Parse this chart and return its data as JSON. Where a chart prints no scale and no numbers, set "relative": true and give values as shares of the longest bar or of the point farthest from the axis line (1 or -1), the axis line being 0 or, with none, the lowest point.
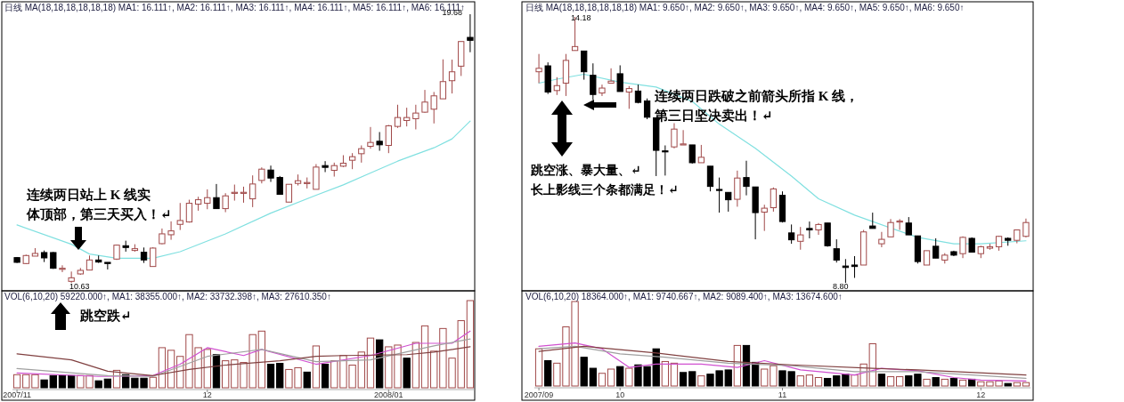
{
  "chart_data": [
    {
      "type": "candlestick",
      "categories": [
        null,
        null,
        null,
        null,
        null,
        null,
        null,
        null,
        null,
        null,
        null,
        null,
        null,
        null,
        null,
        null,
        null,
        null,
        null,
        null,
        null,
        null,
        null,
        null,
        null,
        null,
        null,
        null,
        null,
        null,
        null,
        null,
        null,
        null,
        null,
        null,
        null,
        null,
        null,
        null,
        null,
        null,
        null,
        null,
        null,
        null,
        null,
        null,
        null,
        null,
        null
      ],
      "ohlc": [
        [
          11.48,
          11.5,
          11.3,
          11.32
        ],
        [
          11.28,
          11.58,
          11.26,
          11.55
        ],
        [
          11.53,
          11.8,
          11.53,
          11.62
        ],
        [
          11.65,
          11.72,
          11.33,
          11.47
        ],
        [
          11.65,
          11.67,
          11.1,
          11.12
        ],
        [
          11.11,
          11.22,
          10.99,
          11.12
        ],
        [
          10.68,
          11.01,
          10.63,
          10.8
        ],
        [
          10.93,
          11.13,
          10.9,
          11.05
        ],
        [
          11.06,
          11.55,
          11.06,
          11.4
        ],
        [
          11.4,
          11.55,
          11.3,
          11.33
        ],
        [
          11.32,
          11.32,
          11.08,
          11.28
        ],
        [
          11.43,
          11.92,
          11.4,
          11.9
        ],
        [
          11.88,
          12.05,
          11.68,
          11.82
        ],
        [
          11.72,
          11.93,
          11.68,
          11.78
        ],
        [
          11.66,
          11.82,
          11.3,
          11.4
        ],
        [
          11.18,
          11.83,
          11.18,
          11.8
        ],
        [
          11.95,
          12.46,
          11.93,
          12.28
        ],
        [
          12.25,
          12.7,
          12.08,
          12.38
        ],
        [
          12.6,
          13.32,
          12.41,
          12.73
        ],
        [
          12.68,
          13.43,
          12.66,
          13.31
        ],
        [
          13.28,
          13.53,
          13.06,
          13.43
        ],
        [
          13.31,
          13.78,
          13.11,
          13.5
        ],
        [
          13.5,
          13.96,
          13.13,
          13.13
        ],
        [
          13.13,
          13.65,
          13.01,
          13.56
        ],
        [
          13.67,
          13.94,
          13.4,
          13.68
        ],
        [
          13.67,
          13.87,
          13.33,
          13.68
        ],
        [
          13.46,
          14.25,
          13.18,
          13.96
        ],
        [
          14.08,
          14.52,
          13.98,
          14.46
        ],
        [
          14.43,
          14.58,
          14.03,
          14.16
        ],
        [
          14.18,
          14.23,
          13.61,
          13.61
        ],
        [
          13.35,
          13.95,
          13.35,
          13.95
        ],
        [
          13.98,
          14.28,
          13.91,
          14.07
        ],
        [
          13.98,
          14.18,
          13.81,
          14.01
        ],
        [
          13.78,
          14.63,
          13.78,
          14.53
        ],
        [
          14.58,
          14.73,
          14.36,
          14.52
        ],
        [
          14.42,
          14.68,
          14.21,
          14.58
        ],
        [
          14.56,
          14.93,
          14.53,
          14.66
        ],
        [
          14.76,
          15.0,
          14.46,
          14.88
        ],
        [
          14.98,
          15.26,
          14.68,
          15.15
        ],
        [
          15.23,
          15.88,
          15.15,
          15.36
        ],
        [
          15.4,
          15.71,
          15.08,
          15.28
        ],
        [
          15.26,
          15.95,
          15.0,
          15.92
        ],
        [
          15.9,
          16.63,
          15.85,
          16.2
        ],
        [
          16.1,
          16.53,
          15.9,
          16.2
        ],
        [
          16.16,
          16.63,
          15.8,
          16.35
        ],
        [
          16.38,
          17.13,
          16.36,
          16.72
        ],
        [
          16.48,
          17.06,
          16.0,
          16.93
        ],
        [
          16.83,
          18.16,
          16.83,
          17.41
        ],
        [
          17.44,
          18.15,
          17.01,
          17.74
        ],
        [
          17.93,
          18.76,
          17.6,
          18.76
        ],
        [
          18.9,
          19.68,
          18.4,
          18.8
        ]
      ],
      "series": [
        {
          "type": "line",
          "color": "#80e0e0",
          "values": [
            12.58,
            null,
            null,
            null,
            null,
            null,
            11.93,
            null,
            11.6,
            null,
            null,
            11.46,
            null,
            null,
            null,
            11.46,
            null,
            null,
            11.68,
            null,
            null,
            null,
            null,
            12.28,
            null,
            null,
            null,
            null,
            12.98,
            null,
            null,
            null,
            null,
            13.58,
            null,
            null,
            13.93,
            null,
            null,
            14.33,
            null,
            null,
            14.73,
            null,
            null,
            null,
            15.18,
            null,
            15.48,
            null,
            16.08
          ]
        }
      ],
      "annotations": [
        "日线 MA(18,18,18,18,18,18) MA1: 16.111↑, MA2: 16.111↑, MA3: 16.111↑, MA4: 16.111↑, MA5: 16.111↑, MA6: 16.111↑",
        "连续两日站上 K 线实体顶部，第三天买入！↵",
        "19.68",
        "10.63"
      ]
    },
    {
      "type": "bar",
      "relative": true,
      "categories": [
        "2007/11",
        null,
        null,
        null,
        null,
        null,
        null,
        null,
        null,
        null,
        null,
        null,
        null,
        null,
        null,
        null,
        null,
        null,
        null,
        null,
        null,
        "12",
        null,
        null,
        null,
        null,
        null,
        null,
        null,
        null,
        null,
        null,
        null,
        null,
        null,
        null,
        null,
        null,
        null,
        null,
        null,
        "2008/01",
        null,
        null,
        null,
        null,
        null,
        null,
        null,
        null,
        null
      ],
      "series": [
        {
          "type": "bar",
          "values": [
            0.15,
            0.15,
            0.15,
            0.09,
            0.14,
            0.14,
            0.14,
            0.14,
            0.14,
            0.08,
            0.1,
            0.2,
            0.15,
            0.11,
            0.11,
            0.12,
            0.46,
            0.43,
            0.36,
            0.61,
            0.46,
            0.44,
            0.38,
            0.31,
            0.32,
            0.29,
            0.61,
            0.65,
            0.27,
            0.28,
            0.21,
            0.23,
            0.18,
            0.48,
            0.27,
            0.31,
            0.37,
            0.26,
            0.41,
            0.57,
            0.55,
            0.47,
            0.49,
            0.34,
            0.52,
            0.71,
            0.42,
            0.68,
            0.34,
            0.77,
            1
          ],
          "colors": [
            "#ffffff",
            "#ffffff",
            "#ffffff",
            "#000000",
            "#000000",
            "#000000",
            "#000000",
            "#ffffff",
            "#ffffff",
            "#000000",
            "#000000",
            "#ffffff",
            "#000000",
            "#000000",
            "#000000",
            "#ffffff",
            "#ffffff",
            "#ffffff",
            "#ffffff",
            "#ffffff",
            "#ffffff",
            "#ffffff",
            "#000000",
            "#ffffff",
            "#ffffff",
            "#ffffff",
            "#ffffff",
            "#ffffff",
            "#000000",
            "#000000",
            "#ffffff",
            "#ffffff",
            "#000000",
            "#ffffff",
            "#000000",
            "#ffffff",
            "#ffffff",
            "#ffffff",
            "#ffffff",
            "#ffffff",
            "#000000",
            "#ffffff",
            "#ffffff",
            "#000000",
            "#ffffff",
            "#ffffff",
            "#ffffff",
            "#ffffff",
            "#ffffff",
            "#ffffff",
            "#ffffff"
          ]
        },
        {
          "type": "line",
          "color": "#d050d0",
          "values": [
            0.17,
            null,
            null,
            null,
            null,
            null,
            null,
            null,
            null,
            0.13,
            null,
            null,
            null,
            null,
            null,
            0.14,
            null,
            null,
            0.27,
            null,
            null,
            0.46,
            null,
            null,
            null,
            0.37,
            null,
            0.44,
            null,
            null,
            null,
            null,
            null,
            0.27,
            null,
            null,
            null,
            null,
            null,
            0.37,
            null,
            null,
            null,
            null,
            0.51,
            null,
            null,
            null,
            0.51,
            null,
            0.65
          ]
        },
        {
          "type": "line",
          "color": "#a0a0a0",
          "values": [
            0.22,
            null,
            null,
            null,
            null,
            null,
            null,
            null,
            null,
            null,
            0.14,
            null,
            null,
            null,
            null,
            0.13,
            null,
            null,
            null,
            null,
            null,
            0.36,
            null,
            null,
            null,
            null,
            null,
            0.44,
            null,
            null,
            null,
            null,
            null,
            0.3,
            null,
            null,
            null,
            null,
            null,
            0.32,
            null,
            null,
            null,
            null,
            null,
            null,
            0.48,
            null,
            null,
            null,
            0.56
          ]
        },
        {
          "type": "line",
          "color": "#804040",
          "values": [
            0.39,
            null,
            null,
            null,
            null,
            null,
            0.32,
            null,
            null,
            null,
            0.19,
            null,
            null,
            null,
            null,
            0.14,
            null,
            null,
            null,
            0.21,
            null,
            null,
            null,
            0.26,
            null,
            null,
            null,
            null,
            null,
            0.31,
            null,
            null,
            null,
            0.36,
            null,
            null,
            0.37,
            null,
            null,
            null,
            null,
            null,
            null,
            0.38,
            null,
            null,
            0.41,
            null,
            null,
            null,
            0.47
          ]
        }
      ],
      "annotations": [
        "VOL(6,10,20) 59220.000↑, MA1: 38355.000↑, MA2: 33732.398↑, MA3: 27610.350↑",
        "跳空跌↵"
      ]
    },
    {
      "type": "candlestick",
      "categories": [
        null,
        null,
        null,
        null,
        null,
        null,
        null,
        null,
        null,
        null,
        null,
        null,
        null,
        null,
        null,
        null,
        null,
        null,
        null,
        null,
        null,
        null,
        null,
        null,
        null,
        null,
        null,
        null,
        null,
        null,
        null,
        null,
        null,
        null,
        null,
        null,
        null,
        null,
        null,
        null,
        null,
        null,
        null,
        null,
        null,
        null,
        null,
        null,
        null,
        null,
        null,
        null,
        null,
        null,
        null
      ],
      "ohlc": [
        [
          13.07,
          13.43,
          12.84,
          13.14
        ],
        [
          13.19,
          13.26,
          12.62,
          12.66
        ],
        [
          12.69,
          12.96,
          12.6,
          12.79
        ],
        [
          12.84,
          13.43,
          12.58,
          13.3
        ],
        [
          13.5,
          14.18,
          13.5,
          13.58
        ],
        [
          13.49,
          13.49,
          12.91,
          13.07
        ],
        [
          13.0,
          13.24,
          12.5,
          12.61
        ],
        [
          12.64,
          12.81,
          12.58,
          12.74
        ],
        [
          12.84,
          13.14,
          12.84,
          12.88
        ],
        [
          13.03,
          13.2,
          12.67,
          12.67
        ],
        [
          12.66,
          12.78,
          12.32,
          12.73
        ],
        [
          12.68,
          12.81,
          12.43,
          12.45
        ],
        [
          12.48,
          12.53,
          12.11,
          12.15
        ],
        [
          12.14,
          12.14,
          10.96,
          11.48
        ],
        [
          11.47,
          11.58,
          10.97,
          11.46
        ],
        [
          11.55,
          12.03,
          11.52,
          11.91
        ],
        [
          11.6,
          11.89,
          11.59,
          11.61
        ],
        [
          11.59,
          11.59,
          11.21,
          11.23
        ],
        [
          11.23,
          11.59,
          11.23,
          11.34
        ],
        [
          11.16,
          11.16,
          10.65,
          10.75
        ],
        [
          10.69,
          10.93,
          10.22,
          10.68
        ],
        [
          10.63,
          10.63,
          10.24,
          10.48
        ],
        [
          10.49,
          11.07,
          10.34,
          10.92
        ],
        [
          10.93,
          11.27,
          10.57,
          10.75
        ],
        [
          10.74,
          10.74,
          9.68,
          10.22
        ],
        [
          10.23,
          10.38,
          9.85,
          10.31
        ],
        [
          10.32,
          10.73,
          10.24,
          10.7
        ],
        [
          10.57,
          10.65,
          10.02,
          10.04
        ],
        [
          9.81,
          9.98,
          9.59,
          9.67
        ],
        [
          9.64,
          9.93,
          9.47,
          9.77
        ],
        [
          9.9,
          10.04,
          9.7,
          9.87
        ],
        [
          9.87,
          10.01,
          9.77,
          9.98
        ],
        [
          10.01,
          10.01,
          9.53,
          9.55
        ],
        [
          9.49,
          9.68,
          9.21,
          9.26
        ],
        [
          9.14,
          9.28,
          8.8,
          9.11
        ],
        [
          9.16,
          9.34,
          8.9,
          9.13
        ],
        [
          9.16,
          9.87,
          9.16,
          9.83
        ],
        [
          9.95,
          10.22,
          9.9,
          9.9
        ],
        [
          9.59,
          9.83,
          9.52,
          9.68
        ],
        [
          9.73,
          10.09,
          9.73,
          10.02
        ],
        [
          10.04,
          10.09,
          9.87,
          10.05
        ],
        [
          10.01,
          10.13,
          9.77,
          9.77
        ],
        [
          9.75,
          9.75,
          9.19,
          9.23
        ],
        [
          9.16,
          9.45,
          9.16,
          9.45
        ],
        [
          9.54,
          9.7,
          9.3,
          9.3
        ],
        [
          9.26,
          9.4,
          9.19,
          9.36
        ],
        [
          9.43,
          9.45,
          9.34,
          9.36
        ],
        [
          9.39,
          9.74,
          9.3,
          9.72
        ],
        [
          9.7,
          9.72,
          9.42,
          9.42
        ],
        [
          9.39,
          9.55,
          9.3,
          9.53
        ],
        [
          9.5,
          9.59,
          9.47,
          9.53
        ],
        [
          9.53,
          9.75,
          9.45,
          9.74
        ],
        [
          9.7,
          9.72,
          9.55,
          9.66
        ],
        [
          9.66,
          9.87,
          9.6,
          9.87
        ],
        [
          9.74,
          10.1,
          9.72,
          10.02
        ]
      ],
      "series": [
        {
          "type": "line",
          "color": "#80e0e0",
          "values": [
            12.84,
            null,
            12.92,
            null,
            null,
            13.02,
            null,
            null,
            null,
            12.86,
            null,
            null,
            null,
            12.76,
            null,
            null,
            null,
            12.47,
            null,
            null,
            12.01,
            null,
            null,
            null,
            11.52,
            null,
            null,
            null,
            10.96,
            null,
            null,
            10.5,
            null,
            null,
            null,
            10.17,
            null,
            null,
            null,
            9.91,
            null,
            null,
            9.72,
            null,
            null,
            null,
            9.59,
            null,
            null,
            9.59,
            null,
            null,
            null,
            null,
            9.65
          ]
        }
      ],
      "annotations": [
        "日线 MA(18,18,18,18,18,18) MA1: 9.650↑, MA2: 9.650↑, MA3: 9.650↑, MA4: 9.650↑, MA5: 9.650↑, MA6: 9.650↑",
        "连续两日跌破之前箭头所指 K 线，第三日坚决卖出！↵",
        "跳空涨、暴大量、↵",
        "长上影线三个条都满足！↵",
        "14.18",
        "8.80"
      ]
    },
    {
      "type": "bar",
      "relative": true,
      "categories": [
        "2007/09",
        null,
        null,
        null,
        null,
        null,
        null,
        null,
        null,
        "10",
        null,
        null,
        null,
        null,
        null,
        null,
        null,
        null,
        null,
        null,
        null,
        null,
        null,
        null,
        null,
        null,
        null,
        "11",
        null,
        null,
        null,
        null,
        null,
        null,
        null,
        null,
        null,
        null,
        null,
        null,
        null,
        null,
        null,
        null,
        null,
        null,
        null,
        null,
        null,
        "12",
        null,
        null,
        null,
        null,
        null
      ],
      "series": [
        {
          "type": "bar",
          "values": [
            0.44,
            0.3,
            0.27,
            0.7,
            1,
            0.34,
            0.21,
            0.15,
            0.2,
            0.23,
            0.21,
            0.25,
            0.23,
            0.44,
            0.29,
            0.27,
            0.16,
            0.17,
            0.12,
            0.14,
            0.18,
            0.19,
            0.48,
            0.48,
            0.28,
            0.2,
            0.24,
            0.18,
            0.17,
            0.12,
            0.13,
            0.1,
            0.09,
            0.12,
            0.14,
            0.13,
            0.26,
            0.5,
            0.14,
            0.11,
            0.11,
            0.12,
            0.14,
            0.08,
            0.1,
            0.08,
            0.09,
            0.07,
            0.08,
            0.05,
            0.05,
            0.06,
            0.03,
            0.04,
            0.04
          ],
          "colors": [
            "#ffffff",
            "#000000",
            "#ffffff",
            "#ffffff",
            "#ffffff",
            "#000000",
            "#000000",
            "#ffffff",
            "#ffffff",
            "#000000",
            "#ffffff",
            "#000000",
            "#000000",
            "#000000",
            "#ffffff",
            "#ffffff",
            "#000000",
            "#000000",
            "#ffffff",
            "#000000",
            "#000000",
            "#000000",
            "#ffffff",
            "#000000",
            "#000000",
            "#ffffff",
            "#ffffff",
            "#000000",
            "#000000",
            "#ffffff",
            "#ffffff",
            "#ffffff",
            "#000000",
            "#000000",
            "#000000",
            "#ffffff",
            "#ffffff",
            "#ffffff",
            "#000000",
            "#ffffff",
            "#ffffff",
            "#000000",
            "#000000",
            "#ffffff",
            "#000000",
            "#ffffff",
            "#000000",
            "#ffffff",
            "#000000",
            "#ffffff",
            "#ffffff",
            "#ffffff",
            "#000000",
            "#ffffff",
            "#ffffff"
          ]
        },
        {
          "type": "line",
          "color": "#d050d0",
          "values": [
            0.47,
            null,
            null,
            null,
            0.51,
            null,
            null,
            0.44,
            null,
            null,
            0.22,
            null,
            null,
            0.26,
            null,
            null,
            null,
            null,
            0.26,
            null,
            null,
            null,
            0.22,
            null,
            null,
            0.3,
            null,
            null,
            null,
            0.19,
            null,
            null,
            null,
            null,
            null,
            0.13,
            null,
            null,
            0.21,
            null,
            null,
            null,
            0.18,
            null,
            null,
            null,
            0.1,
            null,
            null,
            0.07,
            null,
            null,
            null,
            null,
            0.06
          ]
        },
        {
          "type": "line",
          "color": "#a0a0a0",
          "values": [
            0.44,
            null,
            null,
            null,
            0.47,
            null,
            null,
            null,
            null,
            0.38,
            null,
            null,
            null,
            null,
            0.34,
            null,
            null,
            null,
            null,
            null,
            null,
            0.27,
            null,
            null,
            null,
            null,
            null,
            null,
            0.24,
            null,
            null,
            null,
            null,
            null,
            null,
            0.17,
            null,
            null,
            null,
            null,
            null,
            null,
            0.17,
            null,
            null,
            null,
            null,
            null,
            null,
            null,
            null,
            null,
            null,
            null,
            0.09
          ]
        },
        {
          "type": "line",
          "color": "#804040",
          "values": [
            0.41,
            null,
            null,
            null,
            null,
            0.47,
            null,
            null,
            null,
            null,
            null,
            null,
            null,
            0.39,
            null,
            null,
            null,
            null,
            null,
            null,
            null,
            0.29,
            null,
            null,
            null,
            null,
            null,
            null,
            0.25,
            null,
            null,
            null,
            null,
            null,
            null,
            null,
            null,
            0.21,
            null,
            null,
            null,
            null,
            0.19,
            null,
            null,
            null,
            null,
            null,
            null,
            null,
            null,
            null,
            null,
            null,
            0.13
          ]
        }
      ],
      "annotations": [
        "VOL(6,10,20) 18364.000↑, MA1: 9740.667↑, MA2: 9089.400↑, MA3: 13674.600↑"
      ]
    }
  ]
}
